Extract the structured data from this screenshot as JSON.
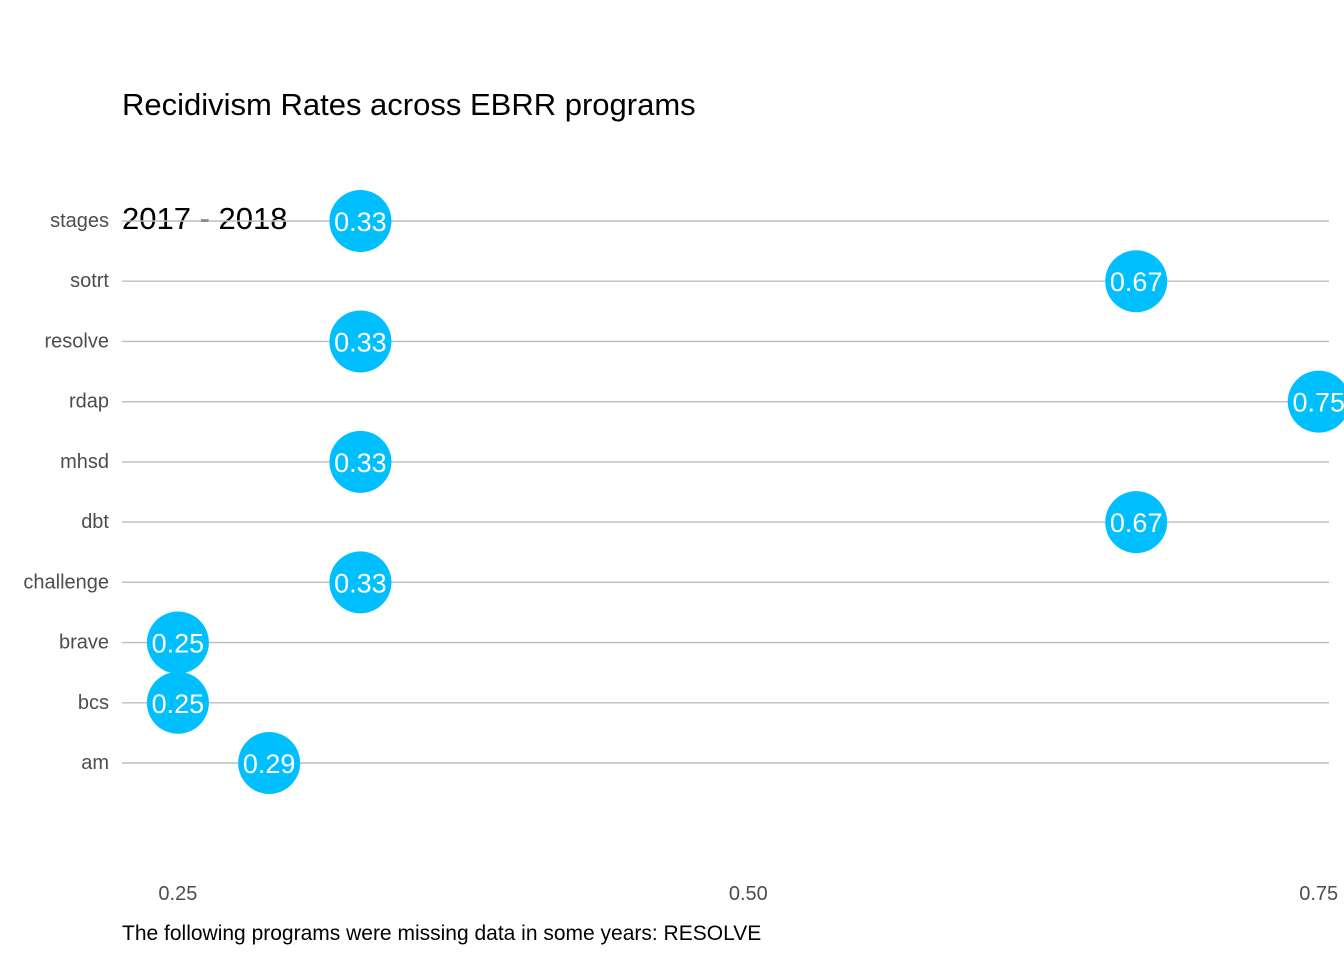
{
  "chart_data": {
    "type": "scatter",
    "title": "Recidivism Rates across EBRR programs",
    "subtitle": "2017 - 2018",
    "caption": "The following programs were missing data in some years: RESOLVE",
    "xlabel": "",
    "ylabel": "",
    "xlim": [
      0.2255,
      0.7545
    ],
    "x_ticks": [
      0.25,
      0.5,
      0.75
    ],
    "x_tick_labels": [
      "0.25",
      "0.50",
      "0.75"
    ],
    "categories": [
      "am",
      "bcs",
      "brave",
      "challenge",
      "dbt",
      "mhsd",
      "rdap",
      "resolve",
      "sotrt",
      "stages"
    ],
    "values": [
      0.29,
      0.25,
      0.25,
      0.33,
      0.67,
      0.33,
      0.75,
      0.33,
      0.67,
      0.33
    ],
    "point_labels": [
      "0.29",
      "0.25",
      "0.25",
      "0.33",
      "0.67",
      "0.33",
      "0.75",
      "0.33",
      "0.67",
      "0.33"
    ],
    "grid": "horizontal major lines only",
    "legend": "none",
    "colors": {
      "point": "#00BFFF",
      "point_label": "#FFFFFF",
      "grid": "#BEBEBE",
      "tick_text": "#4D4D4D",
      "title": "#000000"
    }
  }
}
